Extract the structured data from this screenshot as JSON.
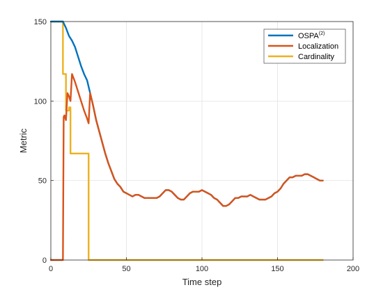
{
  "chart_data": {
    "type": "line",
    "title": "",
    "xlabel": "Time step",
    "ylabel": "Metric",
    "xlim": [
      0,
      200
    ],
    "ylim": [
      0,
      150
    ],
    "xticks": [
      0,
      50,
      100,
      150,
      200
    ],
    "yticks": [
      0,
      50,
      100,
      150
    ],
    "grid": true,
    "legend_position": "top-right",
    "series": [
      {
        "name": "OSPA(2)",
        "legend_main": "OSPA",
        "legend_sup": "(2)",
        "color": "#0072BD",
        "points": [
          [
            0,
            150
          ],
          [
            8,
            150
          ],
          [
            10,
            146
          ],
          [
            12,
            141
          ],
          [
            14,
            138
          ],
          [
            16,
            134
          ],
          [
            18,
            128
          ],
          [
            20,
            122
          ],
          [
            22,
            117
          ],
          [
            24,
            113
          ],
          [
            25,
            109
          ],
          [
            26,
            105
          ],
          [
            28,
            97
          ],
          [
            30,
            88
          ],
          [
            32,
            81
          ],
          [
            34,
            74
          ],
          [
            36,
            67
          ],
          [
            38,
            61
          ],
          [
            40,
            56
          ],
          [
            42,
            51
          ],
          [
            44,
            48
          ],
          [
            46,
            46
          ],
          [
            48,
            43
          ],
          [
            50,
            42
          ],
          [
            52,
            41
          ],
          [
            54,
            40
          ],
          [
            56,
            41
          ],
          [
            58,
            41
          ],
          [
            60,
            40
          ],
          [
            62,
            39
          ],
          [
            64,
            39
          ],
          [
            66,
            39
          ],
          [
            68,
            39
          ],
          [
            70,
            39
          ],
          [
            72,
            40
          ],
          [
            74,
            42
          ],
          [
            76,
            44
          ],
          [
            78,
            44
          ],
          [
            80,
            43
          ],
          [
            82,
            41
          ],
          [
            84,
            39
          ],
          [
            86,
            38
          ],
          [
            88,
            38
          ],
          [
            90,
            40
          ],
          [
            92,
            42
          ],
          [
            94,
            43
          ],
          [
            96,
            43
          ],
          [
            98,
            43
          ],
          [
            100,
            44
          ],
          [
            102,
            43
          ],
          [
            104,
            42
          ],
          [
            106,
            41
          ],
          [
            108,
            39
          ],
          [
            110,
            38
          ],
          [
            112,
            36
          ],
          [
            114,
            34
          ],
          [
            116,
            34
          ],
          [
            118,
            35
          ],
          [
            120,
            37
          ],
          [
            122,
            39
          ],
          [
            124,
            39
          ],
          [
            126,
            40
          ],
          [
            128,
            40
          ],
          [
            130,
            40
          ],
          [
            132,
            41
          ],
          [
            134,
            40
          ],
          [
            136,
            39
          ],
          [
            138,
            38
          ],
          [
            140,
            38
          ],
          [
            142,
            38
          ],
          [
            144,
            39
          ],
          [
            146,
            40
          ],
          [
            148,
            42
          ],
          [
            150,
            43
          ],
          [
            152,
            45
          ],
          [
            154,
            48
          ],
          [
            156,
            50
          ],
          [
            158,
            52
          ],
          [
            160,
            52
          ],
          [
            162,
            53
          ],
          [
            164,
            53
          ],
          [
            166,
            53
          ],
          [
            168,
            54
          ],
          [
            170,
            54
          ],
          [
            172,
            53
          ],
          [
            174,
            52
          ],
          [
            176,
            51
          ],
          [
            178,
            50
          ],
          [
            180,
            50
          ]
        ]
      },
      {
        "name": "Localization",
        "color": "#D95319",
        "points": [
          [
            0,
            0
          ],
          [
            8,
            0
          ],
          [
            8.5,
            90
          ],
          [
            9,
            91
          ],
          [
            10,
            88
          ],
          [
            11,
            105
          ],
          [
            12,
            103
          ],
          [
            13,
            100
          ],
          [
            14,
            117
          ],
          [
            16,
            112
          ],
          [
            18,
            106
          ],
          [
            20,
            100
          ],
          [
            22,
            94
          ],
          [
            24,
            89
          ],
          [
            25,
            86
          ],
          [
            26,
            105
          ],
          [
            28,
            97
          ],
          [
            30,
            88
          ],
          [
            32,
            81
          ],
          [
            34,
            74
          ],
          [
            36,
            67
          ],
          [
            38,
            61
          ],
          [
            40,
            56
          ],
          [
            42,
            51
          ],
          [
            44,
            48
          ],
          [
            46,
            46
          ],
          [
            48,
            43
          ],
          [
            50,
            42
          ],
          [
            52,
            41
          ],
          [
            54,
            40
          ],
          [
            56,
            41
          ],
          [
            58,
            41
          ],
          [
            60,
            40
          ],
          [
            62,
            39
          ],
          [
            64,
            39
          ],
          [
            66,
            39
          ],
          [
            68,
            39
          ],
          [
            70,
            39
          ],
          [
            72,
            40
          ],
          [
            74,
            42
          ],
          [
            76,
            44
          ],
          [
            78,
            44
          ],
          [
            80,
            43
          ],
          [
            82,
            41
          ],
          [
            84,
            39
          ],
          [
            86,
            38
          ],
          [
            88,
            38
          ],
          [
            90,
            40
          ],
          [
            92,
            42
          ],
          [
            94,
            43
          ],
          [
            96,
            43
          ],
          [
            98,
            43
          ],
          [
            100,
            44
          ],
          [
            102,
            43
          ],
          [
            104,
            42
          ],
          [
            106,
            41
          ],
          [
            108,
            39
          ],
          [
            110,
            38
          ],
          [
            112,
            36
          ],
          [
            114,
            34
          ],
          [
            116,
            34
          ],
          [
            118,
            35
          ],
          [
            120,
            37
          ],
          [
            122,
            39
          ],
          [
            124,
            39
          ],
          [
            126,
            40
          ],
          [
            128,
            40
          ],
          [
            130,
            40
          ],
          [
            132,
            41
          ],
          [
            134,
            40
          ],
          [
            136,
            39
          ],
          [
            138,
            38
          ],
          [
            140,
            38
          ],
          [
            142,
            38
          ],
          [
            144,
            39
          ],
          [
            146,
            40
          ],
          [
            148,
            42
          ],
          [
            150,
            43
          ],
          [
            152,
            45
          ],
          [
            154,
            48
          ],
          [
            156,
            50
          ],
          [
            158,
            52
          ],
          [
            160,
            52
          ],
          [
            162,
            53
          ],
          [
            164,
            53
          ],
          [
            166,
            53
          ],
          [
            168,
            54
          ],
          [
            170,
            54
          ],
          [
            172,
            53
          ],
          [
            174,
            52
          ],
          [
            176,
            51
          ],
          [
            178,
            50
          ],
          [
            180,
            50
          ]
        ]
      },
      {
        "name": "Cardinality",
        "color": "#EDB120",
        "points": [
          [
            0,
            150
          ],
          [
            8,
            150
          ],
          [
            8,
            117
          ],
          [
            10,
            117
          ],
          [
            10,
            94
          ],
          [
            12,
            94
          ],
          [
            12,
            96
          ],
          [
            13,
            96
          ],
          [
            13,
            67
          ],
          [
            24,
            67
          ],
          [
            24,
            67
          ],
          [
            25,
            67
          ],
          [
            25,
            0
          ],
          [
            180,
            0
          ]
        ]
      }
    ]
  }
}
